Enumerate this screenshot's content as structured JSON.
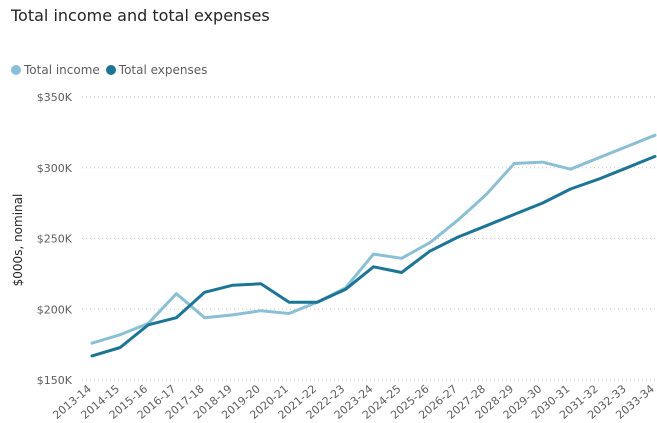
{
  "chart_data": {
    "type": "line",
    "title": "Total income and total expenses",
    "ylabel": "$000s, nominal",
    "ylim": [
      150,
      350
    ],
    "yticks": [
      150,
      200,
      250,
      300,
      350
    ],
    "ytick_labels": [
      "$150K",
      "$200K",
      "$250K",
      "$300K",
      "$350K"
    ],
    "grid": "horizontal-dotted",
    "legend_position": "top-left",
    "categories": [
      "2013-14",
      "2014-15",
      "2015-16",
      "2016-17",
      "2017-18",
      "2018-19",
      "2019-20",
      "2020-21",
      "2021-22",
      "2022-23",
      "2023-24",
      "2024-25",
      "2025-26",
      "2026-27",
      "2027-28",
      "2028-29",
      "2029-30",
      "2030-31",
      "2031-32",
      "2032-33",
      "2033-34"
    ],
    "series": [
      {
        "name": "Total income",
        "color": "#8bbfd5",
        "values": [
          176,
          182,
          190,
          211,
          194,
          196,
          199,
          197,
          205,
          215,
          239,
          236,
          247,
          263,
          281,
          303,
          304,
          299,
          307,
          315,
          323
        ]
      },
      {
        "name": "Total expenses",
        "color": "#1d7595",
        "values": [
          167,
          173,
          189,
          194,
          212,
          217,
          218,
          205,
          205,
          214,
          230,
          226,
          241,
          251,
          259,
          267,
          275,
          285,
          292,
          300,
          308
        ]
      }
    ]
  }
}
